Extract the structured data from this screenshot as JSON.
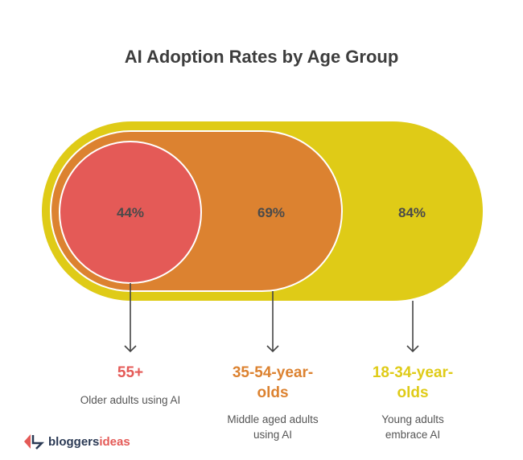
{
  "title": "AI Adoption Rates by Age Group",
  "colors": {
    "yellow": "#dfcb17",
    "orange": "#dc8230",
    "red": "#e45a57",
    "text": "#4a4a4a"
  },
  "groups": [
    {
      "label": "55+",
      "value": "44%",
      "description": "Older adults using AI",
      "color": "#e45a57"
    },
    {
      "label": "35-54-year-olds",
      "label_line1": "35-54-year-",
      "label_line2": "olds",
      "value": "69%",
      "description_line1": "Middle aged adults",
      "description_line2": "using AI",
      "color": "#dc8230"
    },
    {
      "label": "18-34-year-olds",
      "label_line1": "18-34-year-",
      "label_line2": "olds",
      "value": "84%",
      "description_line1": "Young adults",
      "description_line2": "embrace AI",
      "color": "#dfcb17"
    }
  ],
  "logo": {
    "part1": "bloggers",
    "part2": "ideas"
  }
}
